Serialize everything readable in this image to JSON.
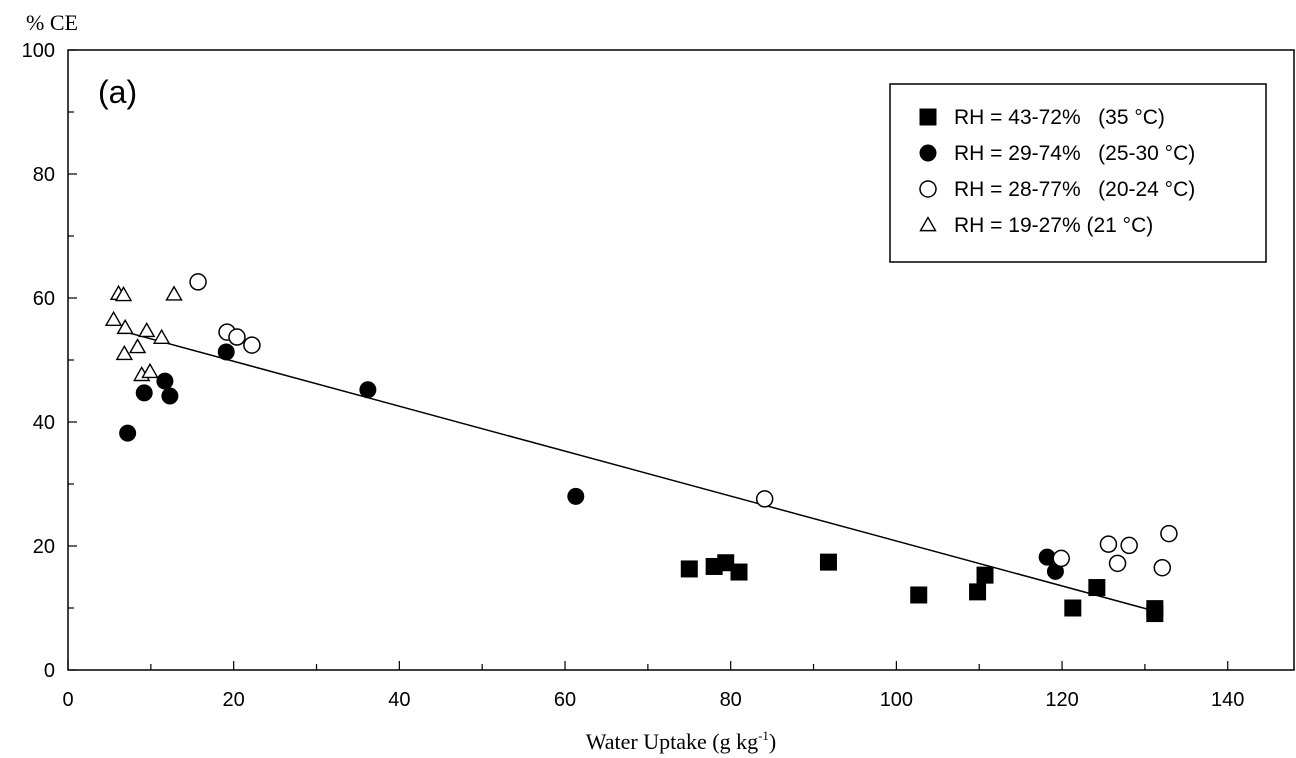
{
  "chart_data": {
    "type": "scatter",
    "panel_label": "(a)",
    "xlabel": "Water Uptake (g kg",
    "xlabel_superscript": "-1",
    "xlabel_suffix": ")",
    "ylabel": "% CE",
    "xlim": [
      0,
      148
    ],
    "ylim": [
      0,
      100
    ],
    "xticks": [
      0,
      20,
      40,
      60,
      80,
      100,
      120,
      140
    ],
    "yticks": [
      0,
      20,
      40,
      60,
      80,
      100
    ],
    "legend_position": "top-right",
    "series": [
      {
        "name": "RH = 43-72%   (35 °C)",
        "marker": "filled-square",
        "points": [
          [
            75,
            16.3
          ],
          [
            78,
            16.7
          ],
          [
            79.4,
            17.3
          ],
          [
            81,
            15.8
          ],
          [
            91.8,
            17.4
          ],
          [
            102.7,
            12.1
          ],
          [
            109.8,
            12.6
          ],
          [
            110.7,
            15.3
          ],
          [
            121.3,
            10
          ],
          [
            124.2,
            13.3
          ],
          [
            131.2,
            9.9
          ],
          [
            131.2,
            9.1
          ]
        ]
      },
      {
        "name": "RH = 29-74%   (25-30 °C)",
        "marker": "filled-circle",
        "points": [
          [
            7.2,
            38.2
          ],
          [
            9.2,
            44.7
          ],
          [
            11.7,
            46.6
          ],
          [
            12.3,
            44.2
          ],
          [
            19.1,
            51.3
          ],
          [
            36.2,
            45.2
          ],
          [
            61.3,
            28
          ],
          [
            118.2,
            18.2
          ],
          [
            119.2,
            15.9
          ]
        ]
      },
      {
        "name": "RH = 28-77%   (20-24 °C)",
        "marker": "open-circle",
        "points": [
          [
            15.7,
            62.6
          ],
          [
            19.2,
            54.5
          ],
          [
            20.4,
            53.7
          ],
          [
            22.2,
            52.4
          ],
          [
            84.1,
            27.6
          ],
          [
            119.9,
            18
          ],
          [
            125.6,
            20.3
          ],
          [
            126.7,
            17.2
          ],
          [
            128.1,
            20.1
          ],
          [
            132.1,
            16.5
          ],
          [
            132.9,
            22
          ]
        ]
      },
      {
        "name": "RH = 19-27% (21 °C)",
        "marker": "open-triangle",
        "points": [
          [
            5.5,
            56.5
          ],
          [
            6.1,
            60.7
          ],
          [
            6.7,
            60.5
          ],
          [
            6.9,
            55.2
          ],
          [
            6.8,
            51
          ],
          [
            8.4,
            52.1
          ],
          [
            8.9,
            47.6
          ],
          [
            9.5,
            54.7
          ],
          [
            9.9,
            48.1
          ],
          [
            11.3,
            53.6
          ],
          [
            12.8,
            60.6
          ]
        ]
      }
    ],
    "trendline": {
      "x": [
        7,
        131.2
      ],
      "y": [
        54.5,
        9.5
      ]
    }
  }
}
